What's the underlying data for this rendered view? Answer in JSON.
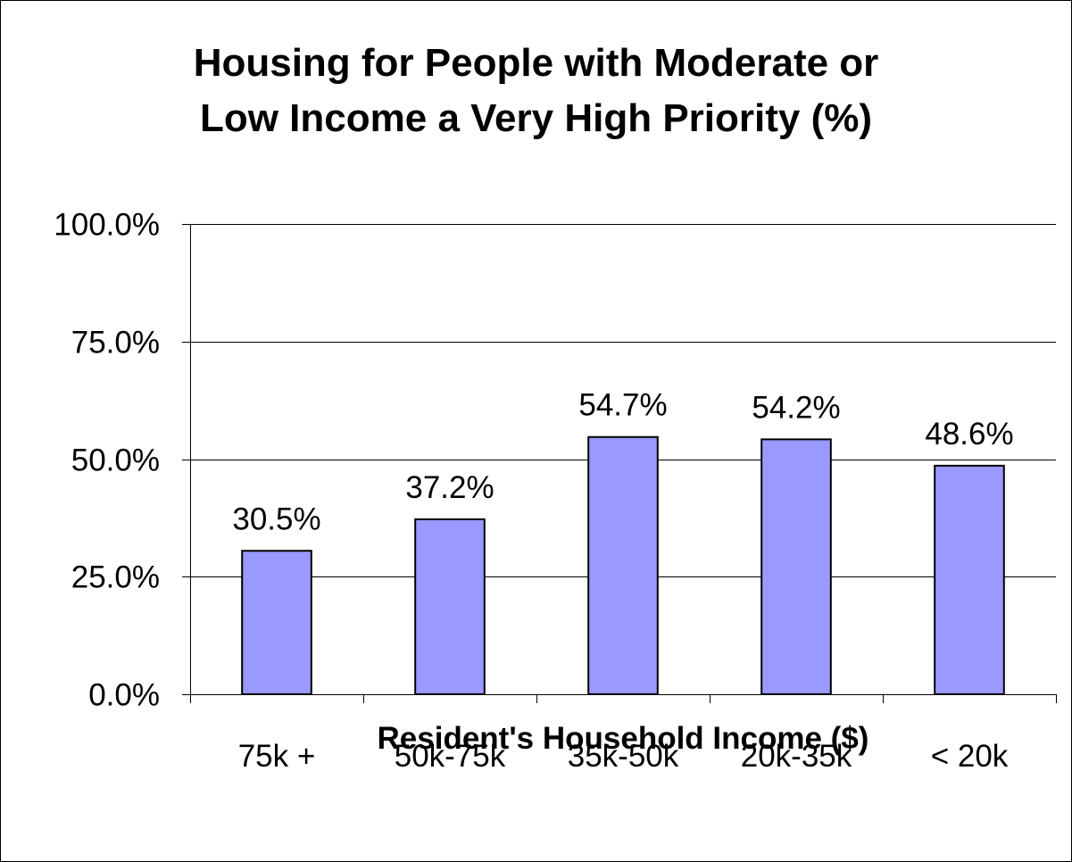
{
  "chart_data": {
    "type": "bar",
    "title_lines": [
      "Housing for People with Moderate or",
      "Low Income a Very High Priority (%)"
    ],
    "xlabel": "Resident's Household Income ($)",
    "ylabel": "",
    "categories": [
      "75k +",
      "50k-75k",
      "35k-50k",
      "20k-35k",
      "< 20k"
    ],
    "values": [
      30.5,
      37.2,
      54.7,
      54.2,
      48.6
    ],
    "data_labels": [
      "30.5%",
      "37.2%",
      "54.7%",
      "54.2%",
      "48.6%"
    ],
    "ylim": [
      0,
      100
    ],
    "yticks": [
      0,
      25,
      50,
      75,
      100
    ],
    "ytick_labels": [
      "0.0%",
      "25.0%",
      "50.0%",
      "75.0%",
      "100.0%"
    ],
    "grid": true,
    "legend": "none",
    "bar_color": "#9999ff",
    "bar_border_color": "#000000",
    "gridline_color": "#000000"
  }
}
